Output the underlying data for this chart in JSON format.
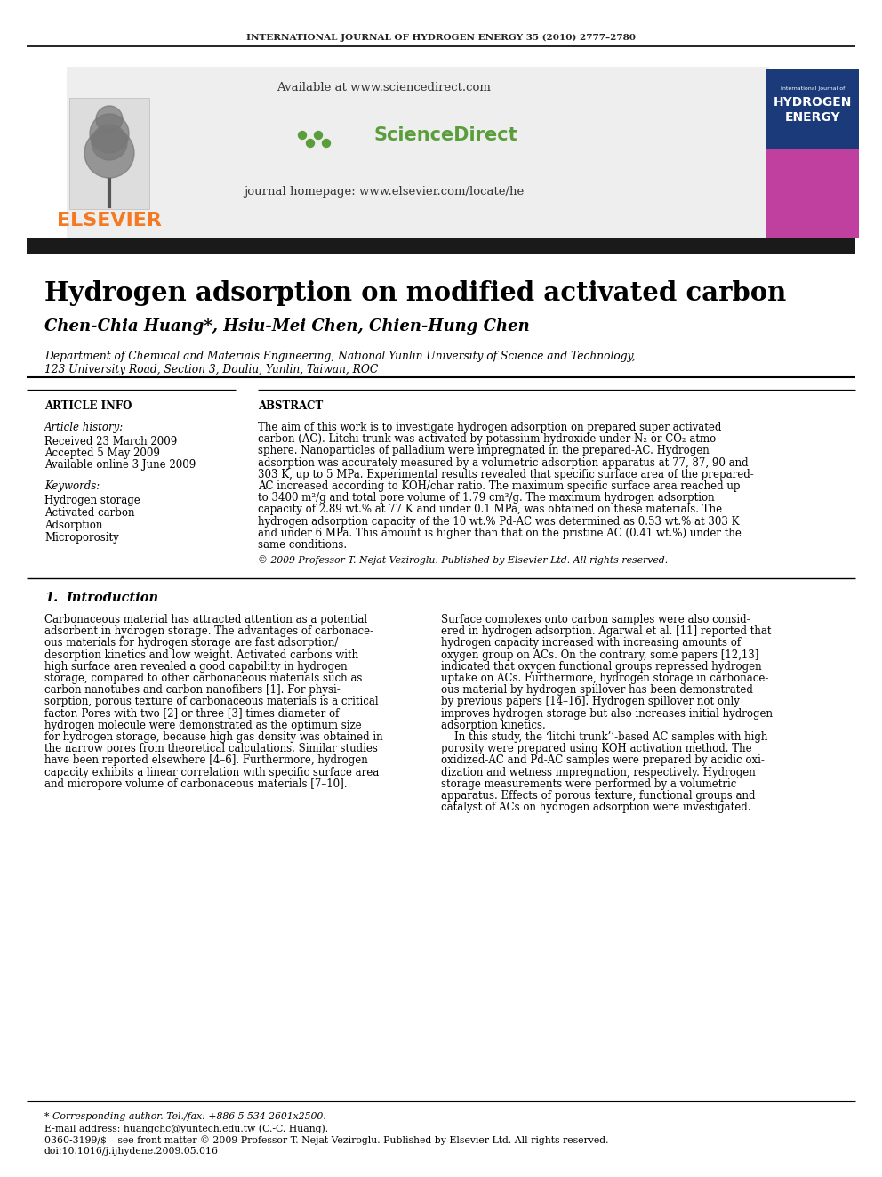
{
  "journal_header": "INTERNATIONAL JOURNAL OF HYDROGEN ENERGY 35 (2010) 2777–2780",
  "available_text": "Available at www.sciencedirect.com",
  "journal_homepage": "journal homepage: www.elsevier.com/locate/he",
  "sciencedirect_text": "ScienceDirect",
  "paper_title": "Hydrogen adsorption on modified activated carbon",
  "authors": "Chen-Chia Huang*, Hsiu-Mei Chen, Chien-Hung Chen",
  "affiliation_line1": "Department of Chemical and Materials Engineering, National Yunlin University of Science and Technology,",
  "affiliation_line2": "123 University Road, Section 3, Douliu, Yunlin, Taiwan, ROC",
  "article_info_header": "ARTICLE INFO",
  "abstract_header": "ABSTRACT",
  "article_history_label": "Article history:",
  "received_label": "Received 23 March 2009",
  "accepted_label": "Accepted 5 May 2009",
  "available_online_label": "Available online 3 June 2009",
  "keywords_label": "Keywords:",
  "keyword1": "Hydrogen storage",
  "keyword2": "Activated carbon",
  "keyword3": "Adsorption",
  "keyword4": "Microporosity",
  "copyright_text": "© 2009 Professor T. Nejat Veziroglu. Published by Elsevier Ltd. All rights reserved.",
  "intro_number": "1.",
  "intro_title": "Introduction",
  "footnote_star": "* Corresponding author. Tel./fax: +886 5 534 2601x2500.",
  "footnote_email": "E-mail address: huangchc@yuntech.edu.tw (C.-C. Huang).",
  "footnote_issn": "0360-3199/$ – see front matter © 2009 Professor T. Nejat Veziroglu. Published by Elsevier Ltd. All rights reserved.",
  "footnote_doi": "doi:10.1016/j.ijhydene.2009.05.016",
  "elsevier_color": "#f47920",
  "header_bg": "#eeeeee",
  "black_bar_color": "#1a1a1a",
  "abstract_lines": [
    "The aim of this work is to investigate hydrogen adsorption on prepared super activated",
    "carbon (AC). Litchi trunk was activated by potassium hydroxide under N₂ or CO₂ atmo-",
    "sphere. Nanoparticles of palladium were impregnated in the prepared-AC. Hydrogen",
    "adsorption was accurately measured by a volumetric adsorption apparatus at 77, 87, 90 and",
    "303 K, up to 5 MPa. Experimental results revealed that specific surface area of the prepared-",
    "AC increased according to KOH/char ratio. The maximum specific surface area reached up",
    "to 3400 m²/g and total pore volume of 1.79 cm³/g. The maximum hydrogen adsorption",
    "capacity of 2.89 wt.% at 77 K and under 0.1 MPa, was obtained on these materials. The",
    "hydrogen adsorption capacity of the 10 wt.% Pd-AC was determined as 0.53 wt.% at 303 K",
    "and under 6 MPa. This amount is higher than that on the pristine AC (0.41 wt.%) under the",
    "same conditions."
  ],
  "intro_left_lines": [
    "Carbonaceous material has attracted attention as a potential",
    "adsorbent in hydrogen storage. The advantages of carbonace-",
    "ous materials for hydrogen storage are fast adsorption/",
    "desorption kinetics and low weight. Activated carbons with",
    "high surface area revealed a good capability in hydrogen",
    "storage, compared to other carbonaceous materials such as",
    "carbon nanotubes and carbon nanofibers [1]. For physi-",
    "sorption, porous texture of carbonaceous materials is a critical",
    "factor. Pores with two [2] or three [3] times diameter of",
    "hydrogen molecule were demonstrated as the optimum size",
    "for hydrogen storage, because high gas density was obtained in",
    "the narrow pores from theoretical calculations. Similar studies",
    "have been reported elsewhere [4–6]. Furthermore, hydrogen",
    "capacity exhibits a linear correlation with specific surface area",
    "and micropore volume of carbonaceous materials [7–10]."
  ],
  "intro_right_lines": [
    "Surface complexes onto carbon samples were also consid-",
    "ered in hydrogen adsorption. Agarwal et al. [11] reported that",
    "hydrogen capacity increased with increasing amounts of",
    "oxygen group on ACs. On the contrary, some papers [12,13]",
    "indicated that oxygen functional groups repressed hydrogen",
    "uptake on ACs. Furthermore, hydrogen storage in carbonace-",
    "ous material by hydrogen spillover has been demonstrated",
    "by previous papers [14–16]. Hydrogen spillover not only",
    "improves hydrogen storage but also increases initial hydrogen",
    "adsorption kinetics.",
    "    In this study, the ‘litchi trunk’’-based AC samples with high",
    "porosity were prepared using KOH activation method. The",
    "oxidized-AC and Pd-AC samples were prepared by acidic oxi-",
    "dization and wetness impregnation, respectively. Hydrogen",
    "storage measurements were performed by a volumetric",
    "apparatus. Effects of porous texture, functional groups and",
    "catalyst of ACs on hydrogen adsorption were investigated."
  ]
}
